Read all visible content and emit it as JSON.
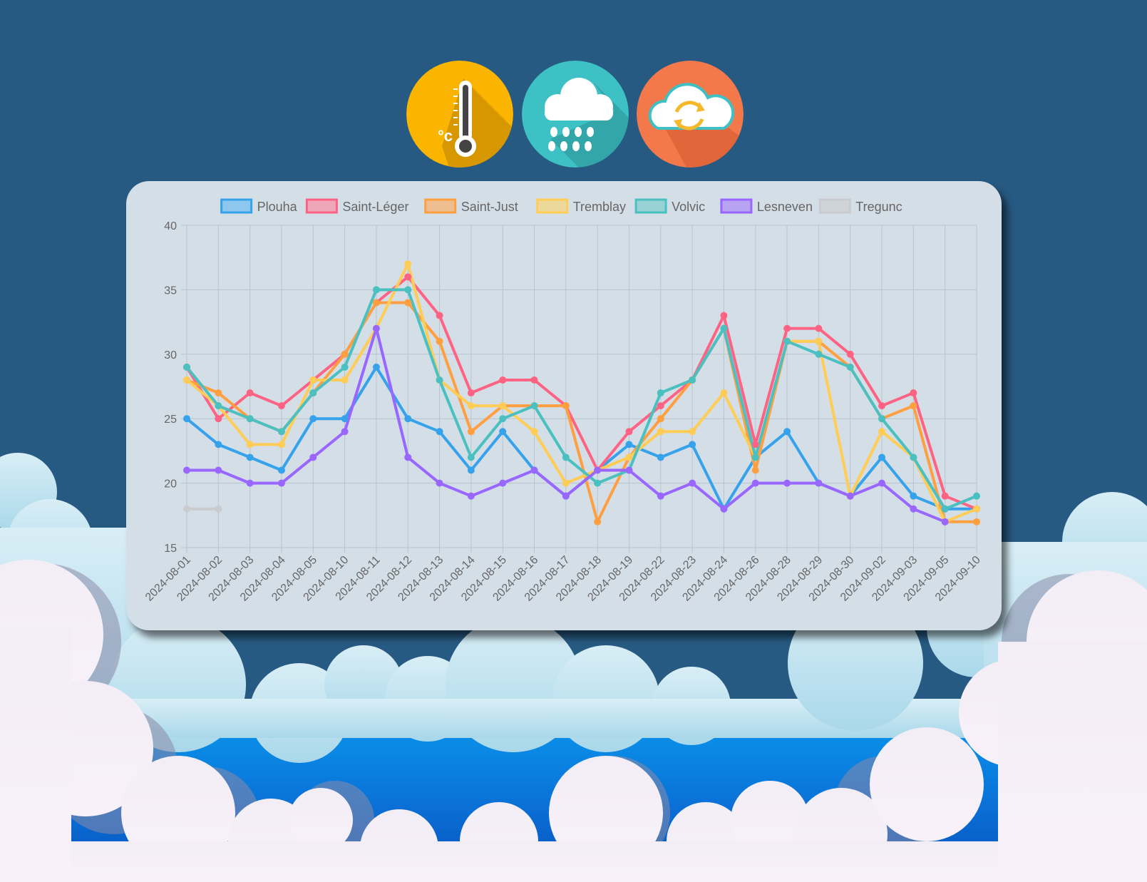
{
  "header": {
    "icons": [
      {
        "name": "thermometer-icon",
        "bg": "#fbb500",
        "label": "°c"
      },
      {
        "name": "rain-cloud-icon",
        "bg": "#3ec1c4"
      },
      {
        "name": "cloud-sync-icon",
        "bg": "#f4794a"
      }
    ]
  },
  "chart_data": {
    "type": "line",
    "title": "",
    "xlabel": "",
    "ylabel": "",
    "ylim": [
      15,
      40
    ],
    "yticks": [
      15,
      20,
      25,
      30,
      35,
      40
    ],
    "grid": true,
    "legend_position": "top",
    "categories": [
      "2024-08-01",
      "2024-08-02",
      "2024-08-03",
      "2024-08-04",
      "2024-08-05",
      "2024-08-10",
      "2024-08-11",
      "2024-08-12",
      "2024-08-13",
      "2024-08-14",
      "2024-08-15",
      "2024-08-16",
      "2024-08-17",
      "2024-08-18",
      "2024-08-19",
      "2024-08-22",
      "2024-08-23",
      "2024-08-24",
      "2024-08-26",
      "2024-08-28",
      "2024-08-29",
      "2024-08-30",
      "2024-09-02",
      "2024-09-03",
      "2024-09-05",
      "2024-09-10"
    ],
    "series": [
      {
        "name": "Plouha",
        "color": "#36a2eb",
        "fill": "#8ec7ee",
        "values": [
          25,
          23,
          22,
          21,
          25,
          25,
          29,
          25,
          24,
          21,
          24,
          21,
          19,
          21,
          23,
          22,
          23,
          18,
          22,
          24,
          20,
          19,
          22,
          19,
          18,
          18
        ]
      },
      {
        "name": "Saint-Léger",
        "color": "#ff6384",
        "fill": "#eda7b9",
        "values": [
          29,
          25,
          27,
          26,
          28,
          30,
          34,
          36,
          33,
          27,
          28,
          28,
          26,
          21,
          24,
          26,
          28,
          33,
          23,
          32,
          32,
          30,
          26,
          27,
          19,
          18
        ]
      },
      {
        "name": "Saint-Just",
        "color": "#ff9f40",
        "fill": "#eebe91",
        "values": [
          28,
          27,
          25,
          24,
          27,
          30,
          34,
          34,
          31,
          24,
          26,
          26,
          26,
          17,
          22,
          25,
          28,
          32,
          21,
          31,
          31,
          29,
          25,
          26,
          17,
          17
        ]
      },
      {
        "name": "Tremblay",
        "color": "#ffcd56",
        "fill": "#ebd89b",
        "values": [
          28,
          26,
          23,
          23,
          28,
          28,
          32,
          37,
          28,
          26,
          26,
          24,
          20,
          21,
          22,
          24,
          24,
          27,
          22,
          31,
          31,
          19,
          24,
          22,
          17,
          18
        ]
      },
      {
        "name": "Volvic",
        "color": "#4bc0c0",
        "fill": "#98d2d6",
        "values": [
          29,
          26,
          25,
          24,
          27,
          29,
          35,
          35,
          28,
          22,
          25,
          26,
          22,
          20,
          21,
          27,
          28,
          32,
          22,
          31,
          30,
          29,
          25,
          22,
          18,
          19
        ]
      },
      {
        "name": "Lesneven",
        "color": "#9966ff",
        "fill": "#b7a3f2",
        "values": [
          21,
          21,
          20,
          20,
          22,
          24,
          32,
          22,
          20,
          19,
          20,
          21,
          19,
          21,
          21,
          19,
          20,
          18,
          20,
          20,
          20,
          19,
          20,
          18,
          17,
          null
        ]
      },
      {
        "name": "Tregunc",
        "color": "#c9cbcf",
        "fill": "#cfd4d9",
        "values": [
          18,
          18,
          null,
          null,
          null,
          null,
          null,
          null,
          null,
          null,
          null,
          null,
          null,
          null,
          null,
          null,
          null,
          null,
          null,
          null,
          null,
          null,
          null,
          null,
          null,
          null
        ]
      }
    ]
  }
}
